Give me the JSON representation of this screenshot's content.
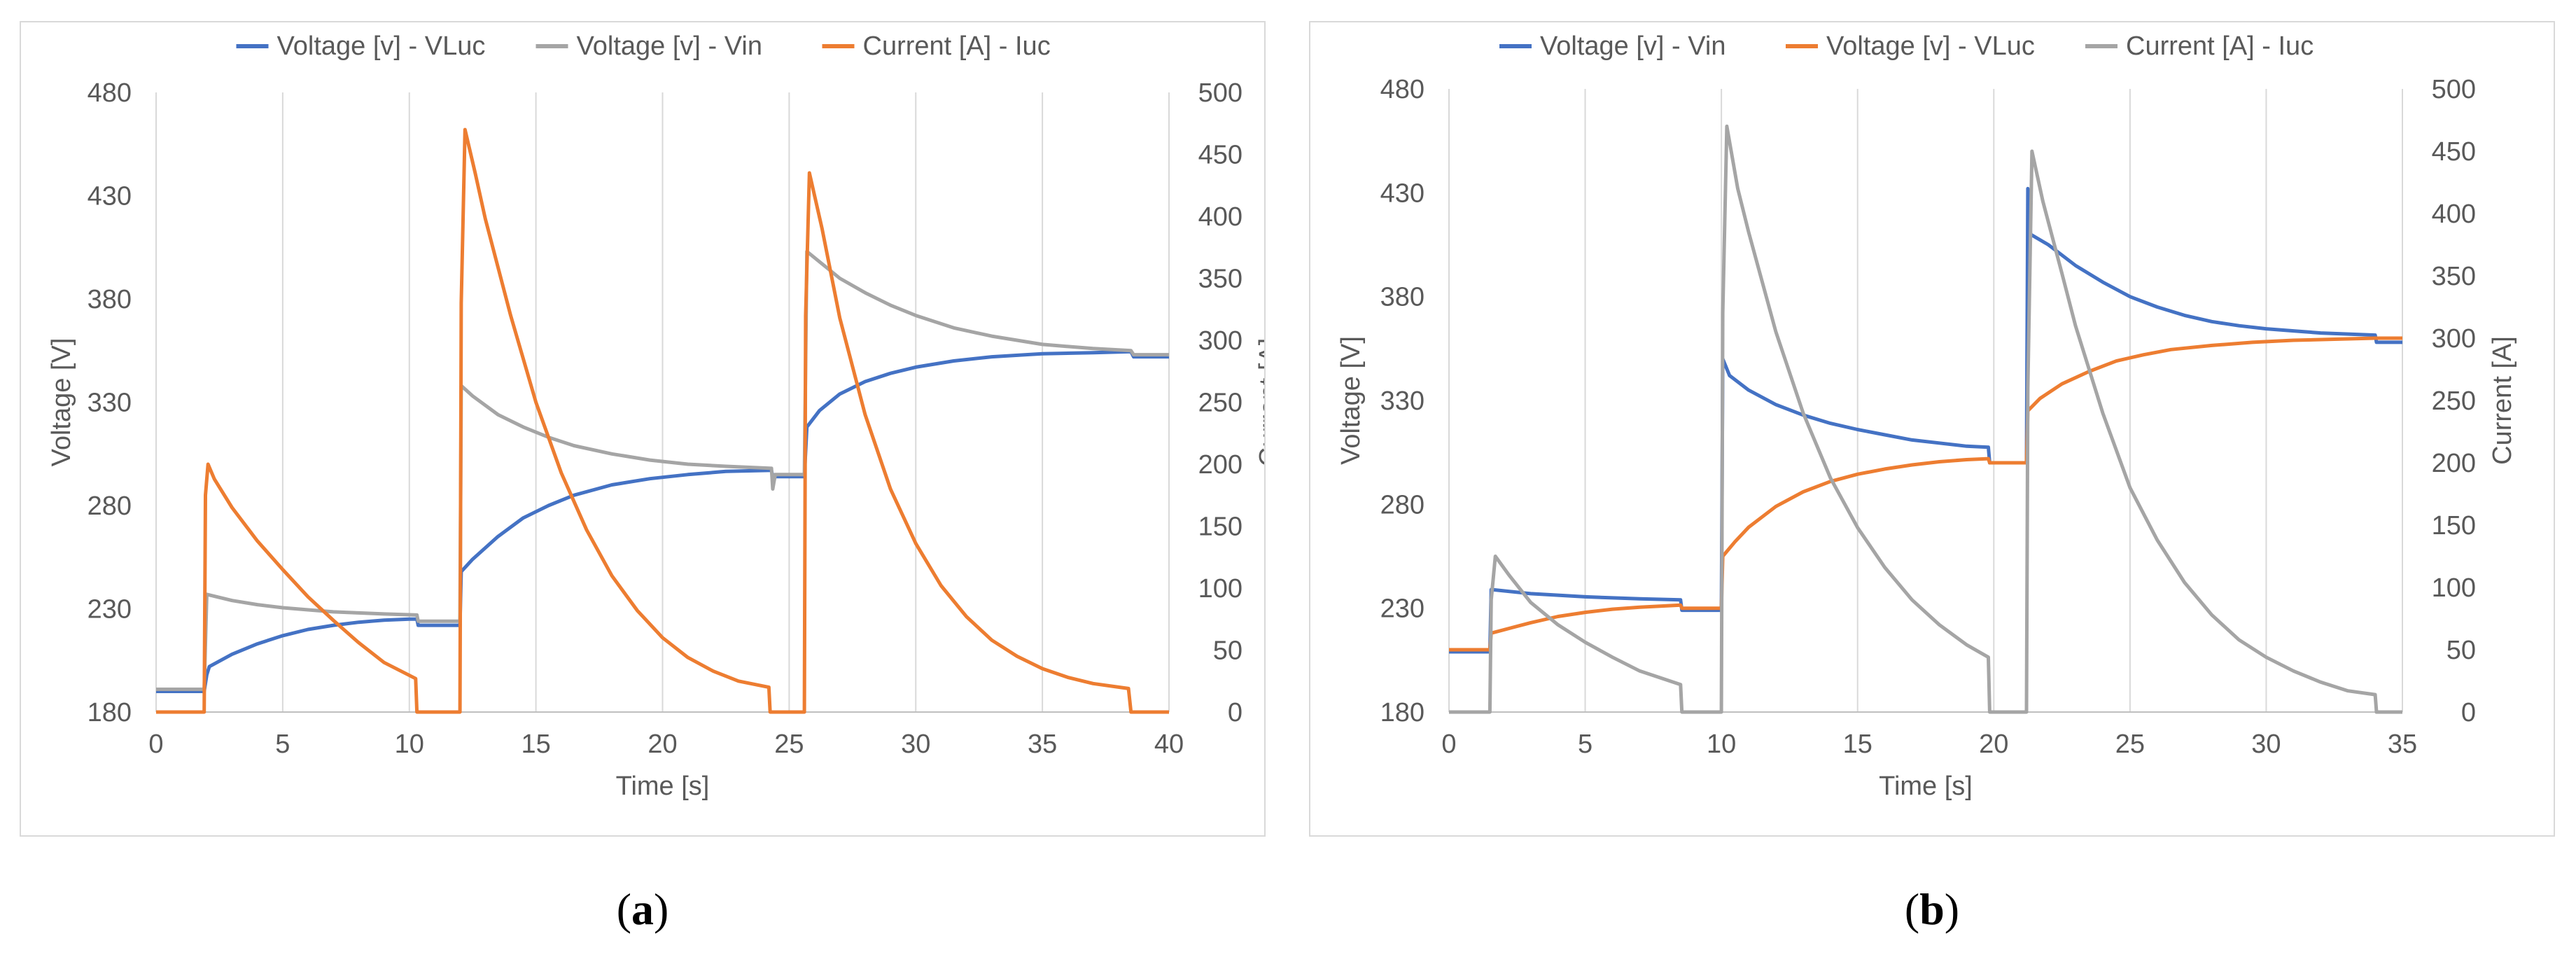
{
  "captions": {
    "a": "a",
    "b": "b"
  },
  "chart_data": [
    {
      "type": "line",
      "panel": "a",
      "title": "",
      "xlabel": "Time [s]",
      "ylabel": "Voltage [V]",
      "y2label": "Current [A]",
      "xlim": [
        0,
        40
      ],
      "ylim": [
        180,
        480
      ],
      "y2lim": [
        0,
        500
      ],
      "xticks": [
        "0",
        "5",
        "10",
        "15",
        "20",
        "25",
        "30",
        "35",
        "40"
      ],
      "yticks": [
        "180",
        "230",
        "280",
        "330",
        "380",
        "430",
        "480"
      ],
      "y2ticks": [
        "0",
        "50",
        "100",
        "150",
        "200",
        "250",
        "300",
        "350",
        "400",
        "450",
        "500"
      ],
      "grid": "vertical",
      "legend_position": "top-center",
      "series": [
        {
          "name": "Voltage [v] - VLuc",
          "axis": "left",
          "color": "#4472c4",
          "points": [
            [
              0,
              190
            ],
            [
              1.9,
              190
            ],
            [
              2.0,
              198
            ],
            [
              2.1,
              202
            ],
            [
              3,
              208
            ],
            [
              4,
              213
            ],
            [
              5,
              217
            ],
            [
              6,
              220
            ],
            [
              7,
              222
            ],
            [
              8,
              223.5
            ],
            [
              9,
              224.5
            ],
            [
              10,
              225
            ],
            [
              10.3,
              225
            ],
            [
              10.35,
              222
            ],
            [
              12.0,
              222
            ],
            [
              12.05,
              248
            ],
            [
              12.5,
              254
            ],
            [
              13.5,
              265
            ],
            [
              14.5,
              274
            ],
            [
              15.5,
              280
            ],
            [
              16.5,
              285
            ],
            [
              18,
              290
            ],
            [
              19.5,
              293
            ],
            [
              21,
              295
            ],
            [
              22.5,
              296.5
            ],
            [
              24.3,
              297
            ],
            [
              24.35,
              294
            ],
            [
              25.6,
              294
            ],
            [
              25.7,
              318
            ],
            [
              26.2,
              326
            ],
            [
              27,
              334
            ],
            [
              28,
              340
            ],
            [
              29,
              344
            ],
            [
              30,
              347
            ],
            [
              31.5,
              350
            ],
            [
              33,
              352
            ],
            [
              35,
              353.5
            ],
            [
              37,
              354
            ],
            [
              38.5,
              354.5
            ],
            [
              38.6,
              352
            ],
            [
              40,
              352
            ]
          ]
        },
        {
          "name": "Voltage [v] - Vin",
          "axis": "left",
          "color": "#a5a5a5",
          "points": [
            [
              0,
              191
            ],
            [
              1.9,
              191
            ],
            [
              2.0,
              237
            ],
            [
              3,
              234
            ],
            [
              4,
              232
            ],
            [
              5,
              230.5
            ],
            [
              6,
              229.5
            ],
            [
              7,
              228.5
            ],
            [
              8,
              228
            ],
            [
              9,
              227.5
            ],
            [
              10.3,
              227
            ],
            [
              10.35,
              224
            ],
            [
              12.0,
              224
            ],
            [
              12.05,
              338
            ],
            [
              12.5,
              333
            ],
            [
              13.5,
              324
            ],
            [
              14.5,
              318
            ],
            [
              15.5,
              313
            ],
            [
              16.5,
              309
            ],
            [
              18,
              305
            ],
            [
              19.5,
              302
            ],
            [
              21,
              300
            ],
            [
              22.5,
              299
            ],
            [
              24.3,
              298
            ],
            [
              24.35,
              288
            ],
            [
              24.45,
              295
            ],
            [
              25.6,
              295
            ],
            [
              25.7,
              403
            ],
            [
              26.2,
              398
            ],
            [
              27,
              390
            ],
            [
              28,
              383
            ],
            [
              29,
              377
            ],
            [
              30,
              372
            ],
            [
              31.5,
              366
            ],
            [
              33,
              362
            ],
            [
              35,
              358
            ],
            [
              37,
              356
            ],
            [
              38.5,
              355
            ],
            [
              38.6,
              353
            ],
            [
              40,
              353
            ]
          ]
        },
        {
          "name": "Current [A] - Iuc",
          "axis": "right",
          "color": "#ed7d31",
          "points": [
            [
              0,
              0
            ],
            [
              1.9,
              0
            ],
            [
              1.95,
              175
            ],
            [
              2.05,
              200
            ],
            [
              2.3,
              188
            ],
            [
              3,
              165
            ],
            [
              4,
              138
            ],
            [
              5,
              115
            ],
            [
              6,
              93
            ],
            [
              7,
              74
            ],
            [
              8,
              56
            ],
            [
              9,
              40
            ],
            [
              10.25,
              27
            ],
            [
              10.3,
              0
            ],
            [
              12.0,
              0
            ],
            [
              12.05,
              330
            ],
            [
              12.2,
              470
            ],
            [
              12.6,
              435
            ],
            [
              13,
              398
            ],
            [
              14,
              320
            ],
            [
              15,
              250
            ],
            [
              16,
              193
            ],
            [
              17,
              147
            ],
            [
              18,
              110
            ],
            [
              19,
              82
            ],
            [
              20,
              60
            ],
            [
              21,
              44
            ],
            [
              22,
              33
            ],
            [
              23,
              25
            ],
            [
              24.2,
              20
            ],
            [
              24.25,
              0
            ],
            [
              25.6,
              0
            ],
            [
              25.65,
              320
            ],
            [
              25.8,
              435
            ],
            [
              26.3,
              390
            ],
            [
              27,
              318
            ],
            [
              28,
              240
            ],
            [
              29,
              180
            ],
            [
              30,
              136
            ],
            [
              31,
              102
            ],
            [
              32,
              77
            ],
            [
              33,
              58
            ],
            [
              34,
              45
            ],
            [
              35,
              35
            ],
            [
              36,
              28
            ],
            [
              37,
              23
            ],
            [
              38.4,
              19
            ],
            [
              38.5,
              0
            ],
            [
              40,
              0
            ]
          ]
        }
      ]
    },
    {
      "type": "line",
      "panel": "b",
      "title": "",
      "xlabel": "Time [s]",
      "ylabel": "Voltage [V]",
      "y2label": "Current [A]",
      "xlim": [
        0,
        35
      ],
      "ylim": [
        180,
        480
      ],
      "y2lim": [
        0,
        500
      ],
      "xticks": [
        "0",
        "5",
        "10",
        "15",
        "20",
        "25",
        "30",
        "35"
      ],
      "yticks": [
        "180",
        "230",
        "280",
        "330",
        "380",
        "430",
        "480"
      ],
      "y2ticks": [
        "0",
        "50",
        "100",
        "150",
        "200",
        "250",
        "300",
        "350",
        "400",
        "450",
        "500"
      ],
      "grid": "vertical",
      "legend_position": "top-center",
      "series": [
        {
          "name": "Voltage [v] - Vin",
          "axis": "left",
          "color": "#4472c4",
          "points": [
            [
              0,
              209
            ],
            [
              1.5,
              209
            ],
            [
              1.55,
              239
            ],
            [
              3,
              237
            ],
            [
              5,
              235.5
            ],
            [
              7,
              234.5
            ],
            [
              8.5,
              234
            ],
            [
              8.55,
              229
            ],
            [
              10.0,
              229
            ],
            [
              10.05,
              350
            ],
            [
              10.3,
              342
            ],
            [
              11,
              335
            ],
            [
              12,
              328
            ],
            [
              13,
              323
            ],
            [
              14,
              319
            ],
            [
              15,
              316
            ],
            [
              16,
              313.5
            ],
            [
              17,
              311
            ],
            [
              18,
              309.5
            ],
            [
              19,
              308
            ],
            [
              19.8,
              307.5
            ],
            [
              19.85,
              300
            ],
            [
              21.2,
              300
            ],
            [
              21.25,
              432
            ],
            [
              21.35,
              410
            ],
            [
              22,
              405
            ],
            [
              23,
              395
            ],
            [
              24,
              387
            ],
            [
              25,
              380
            ],
            [
              26,
              375
            ],
            [
              27,
              371
            ],
            [
              28,
              368
            ],
            [
              29,
              366
            ],
            [
              30,
              364.5
            ],
            [
              31,
              363.5
            ],
            [
              32,
              362.5
            ],
            [
              33,
              362
            ],
            [
              34,
              361.5
            ],
            [
              34.05,
              358
            ],
            [
              35,
              358
            ]
          ]
        },
        {
          "name": "Voltage [v] - VLuc",
          "axis": "left",
          "color": "#ed7d31",
          "points": [
            [
              0,
              210
            ],
            [
              1.5,
              210
            ],
            [
              1.55,
              218
            ],
            [
              3,
              223
            ],
            [
              4,
              226
            ],
            [
              5,
              228
            ],
            [
              6,
              229.5
            ],
            [
              7,
              230.5
            ],
            [
              8.5,
              231.5
            ],
            [
              8.55,
              230
            ],
            [
              10.0,
              230
            ],
            [
              10.05,
              255
            ],
            [
              10.5,
              262
            ],
            [
              11,
              269
            ],
            [
              12,
              279
            ],
            [
              13,
              286
            ],
            [
              14,
              291
            ],
            [
              15,
              294.5
            ],
            [
              16,
              297
            ],
            [
              17,
              299
            ],
            [
              18,
              300.5
            ],
            [
              19,
              301.5
            ],
            [
              19.8,
              302
            ],
            [
              19.85,
              300
            ],
            [
              21.2,
              300
            ],
            [
              21.25,
              325
            ],
            [
              21.7,
              331
            ],
            [
              22.5,
              338
            ],
            [
              23.5,
              344
            ],
            [
              24.5,
              349
            ],
            [
              25.5,
              352
            ],
            [
              26.5,
              354.5
            ],
            [
              28,
              356.5
            ],
            [
              29.5,
              358
            ],
            [
              31,
              359
            ],
            [
              32.5,
              359.5
            ],
            [
              34,
              360
            ],
            [
              35,
              360
            ]
          ]
        },
        {
          "name": "Current [A] - Iuc",
          "axis": "right",
          "color": "#a5a5a5",
          "points": [
            [
              0,
              0
            ],
            [
              1.5,
              0
            ],
            [
              1.55,
              90
            ],
            [
              1.7,
              125
            ],
            [
              2.2,
              110
            ],
            [
              3,
              88
            ],
            [
              4,
              70
            ],
            [
              5,
              56
            ],
            [
              6,
              44
            ],
            [
              7,
              33
            ],
            [
              8.5,
              22
            ],
            [
              8.55,
              0
            ],
            [
              10.0,
              0
            ],
            [
              10.05,
              320
            ],
            [
              10.2,
              470
            ],
            [
              10.6,
              420
            ],
            [
              11,
              385
            ],
            [
              12,
              305
            ],
            [
              13,
              240
            ],
            [
              14,
              188
            ],
            [
              15,
              148
            ],
            [
              16,
              116
            ],
            [
              17,
              90
            ],
            [
              18,
              70
            ],
            [
              19,
              54
            ],
            [
              19.8,
              44
            ],
            [
              19.85,
              0
            ],
            [
              21.2,
              0
            ],
            [
              21.25,
              260
            ],
            [
              21.4,
              450
            ],
            [
              21.8,
              410
            ],
            [
              22.5,
              352
            ],
            [
              23,
              310
            ],
            [
              24,
              240
            ],
            [
              25,
              180
            ],
            [
              26,
              138
            ],
            [
              27,
              104
            ],
            [
              28,
              78
            ],
            [
              29,
              58
            ],
            [
              30,
              44
            ],
            [
              31,
              33
            ],
            [
              32,
              24
            ],
            [
              33,
              17
            ],
            [
              34,
              14
            ],
            [
              34.05,
              0
            ],
            [
              35,
              0
            ]
          ]
        }
      ]
    }
  ]
}
